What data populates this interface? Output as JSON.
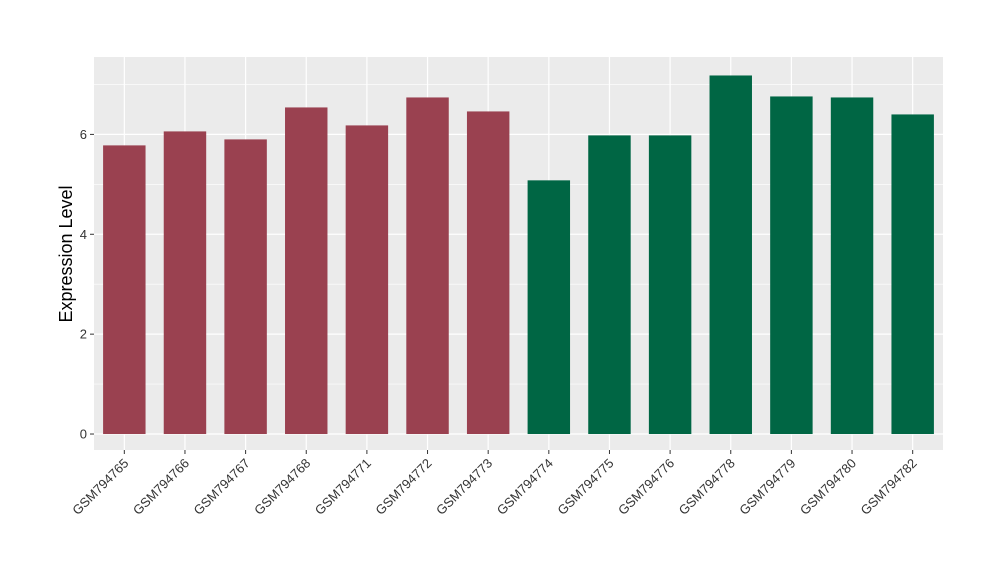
{
  "chart_data": {
    "type": "bar",
    "title": "",
    "xlabel": "",
    "ylabel": "Expression Level",
    "ylim": [
      -0.32,
      7.55
    ],
    "yticks": [
      0,
      2,
      4,
      6
    ],
    "grid": true,
    "categories": [
      "GSM794765",
      "GSM794766",
      "GSM794767",
      "GSM794768",
      "GSM794771",
      "GSM794772",
      "GSM794773",
      "GSM794774",
      "GSM794775",
      "GSM794776",
      "GSM794778",
      "GSM794779",
      "GSM794780",
      "GSM794782"
    ],
    "values": [
      5.78,
      6.06,
      5.9,
      6.54,
      6.18,
      6.74,
      6.46,
      5.08,
      5.98,
      5.98,
      7.18,
      6.76,
      6.74,
      6.4
    ],
    "bar_colors": [
      "#9a4150",
      "#9a4150",
      "#9a4150",
      "#9a4150",
      "#9a4150",
      "#9a4150",
      "#9a4150",
      "#006644",
      "#006644",
      "#006644",
      "#006644",
      "#006644",
      "#006644",
      "#006644"
    ],
    "colors": {
      "panel": "#ebebeb",
      "grid": "#ffffff",
      "axis_text": "#333333"
    }
  }
}
